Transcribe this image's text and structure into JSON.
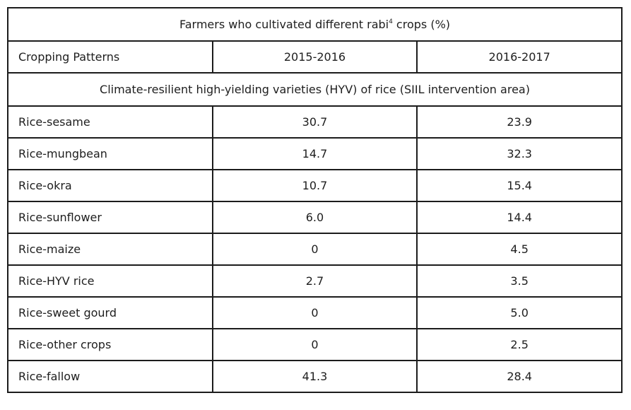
{
  "table": {
    "title_before": "Farmers who cultivated different rabi",
    "title_sup": "4",
    "title_after": " crops (%)",
    "headers": [
      "Cropping Patterns",
      "2015-2016",
      "2016-2017"
    ],
    "section": "Climate-resilient high-yielding varieties (HYV) of rice (SIIL intervention area)",
    "rows": [
      {
        "pattern": "Rice-sesame",
        "y2015": "30.7",
        "y2016": "23.9"
      },
      {
        "pattern": "Rice-mungbean",
        "y2015": "14.7",
        "y2016": "32.3"
      },
      {
        "pattern": "Rice-okra",
        "y2015": "10.7",
        "y2016": "15.4"
      },
      {
        "pattern": "Rice-sunflower",
        "y2015": "6.0",
        "y2016": "14.4"
      },
      {
        "pattern": "Rice-maize",
        "y2015": "0",
        "y2016": "4.5"
      },
      {
        "pattern": "Rice-HYV rice",
        "y2015": "2.7",
        "y2016": "3.5"
      },
      {
        "pattern": "Rice-sweet gourd",
        "y2015": "0",
        "y2016": "5.0"
      },
      {
        "pattern": "Rice-other crops",
        "y2015": "0",
        "y2016": "2.5"
      },
      {
        "pattern": "Rice-fallow",
        "y2015": "41.3",
        "y2016": "28.4"
      }
    ]
  }
}
